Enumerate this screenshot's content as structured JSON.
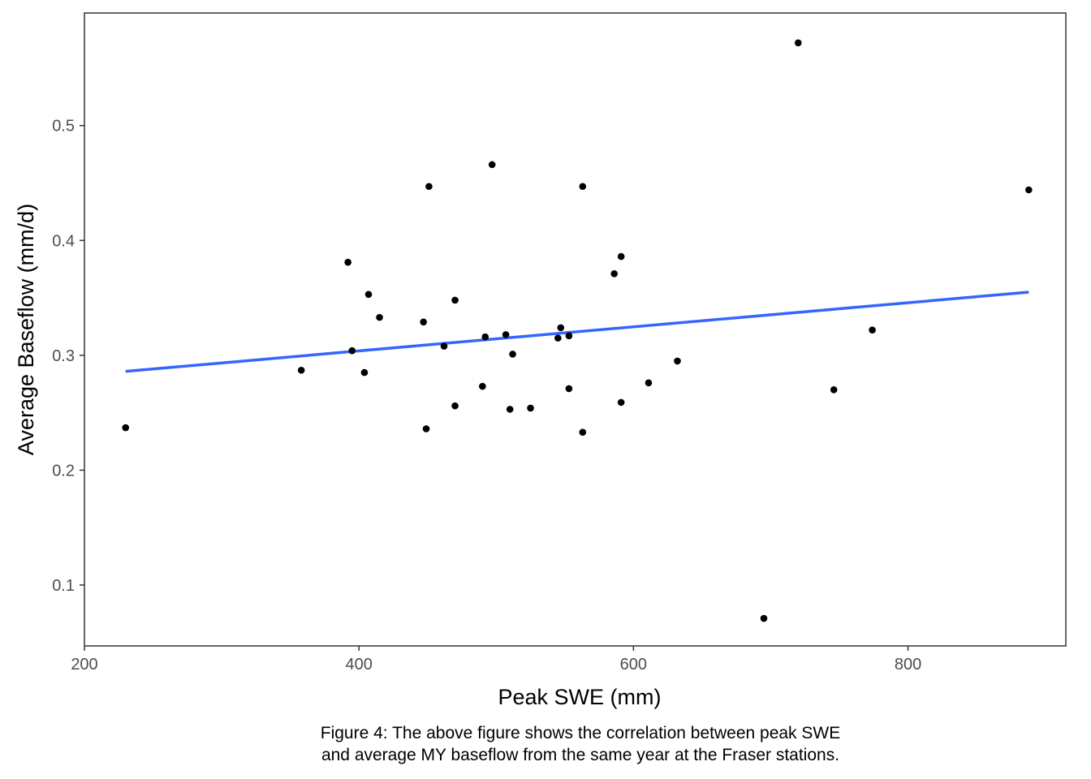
{
  "chart_data": {
    "type": "scatter",
    "title": "",
    "xlabel": "Peak SWE (mm)",
    "ylabel": "Average Baseflow (mm/d)",
    "xlim": [
      200,
      915
    ],
    "ylim": [
      0.047,
      0.598
    ],
    "xticks": [
      200,
      400,
      600,
      800
    ],
    "yticks": [
      0.1,
      0.2,
      0.3,
      0.4,
      0.5
    ],
    "xtick_labels": [
      "200",
      "400",
      "600",
      "800"
    ],
    "ytick_labels": [
      "0.1",
      "0.2",
      "0.3",
      "0.4",
      "0.5"
    ],
    "grid": false,
    "legend": "none",
    "point_color": "#000000",
    "points": [
      {
        "x": 230,
        "y": 0.237
      },
      {
        "x": 358,
        "y": 0.287
      },
      {
        "x": 392,
        "y": 0.381
      },
      {
        "x": 395,
        "y": 0.304
      },
      {
        "x": 404,
        "y": 0.285
      },
      {
        "x": 407,
        "y": 0.353
      },
      {
        "x": 415,
        "y": 0.333
      },
      {
        "x": 447,
        "y": 0.329
      },
      {
        "x": 449,
        "y": 0.236
      },
      {
        "x": 451,
        "y": 0.447
      },
      {
        "x": 462,
        "y": 0.308
      },
      {
        "x": 470,
        "y": 0.348
      },
      {
        "x": 470,
        "y": 0.256
      },
      {
        "x": 490,
        "y": 0.273
      },
      {
        "x": 492,
        "y": 0.316
      },
      {
        "x": 497,
        "y": 0.466
      },
      {
        "x": 507,
        "y": 0.318
      },
      {
        "x": 510,
        "y": 0.253
      },
      {
        "x": 512,
        "y": 0.301
      },
      {
        "x": 525,
        "y": 0.254
      },
      {
        "x": 545,
        "y": 0.315
      },
      {
        "x": 547,
        "y": 0.324
      },
      {
        "x": 553,
        "y": 0.317
      },
      {
        "x": 553,
        "y": 0.271
      },
      {
        "x": 563,
        "y": 0.447
      },
      {
        "x": 563,
        "y": 0.233
      },
      {
        "x": 586,
        "y": 0.371
      },
      {
        "x": 591,
        "y": 0.386
      },
      {
        "x": 591,
        "y": 0.259
      },
      {
        "x": 611,
        "y": 0.276
      },
      {
        "x": 632,
        "y": 0.295
      },
      {
        "x": 695,
        "y": 0.071
      },
      {
        "x": 720,
        "y": 0.572
      },
      {
        "x": 746,
        "y": 0.27
      },
      {
        "x": 774,
        "y": 0.322
      },
      {
        "x": 888,
        "y": 0.444
      }
    ],
    "trend": {
      "type": "linear",
      "color": "#3366ff",
      "x": [
        230,
        888
      ],
      "y": [
        0.286,
        0.355
      ]
    }
  },
  "caption": {
    "line1": "Figure 4: The above figure shows the correlation between peak SWE",
    "line2": "and average MY baseflow from the same year at the Fraser stations."
  }
}
